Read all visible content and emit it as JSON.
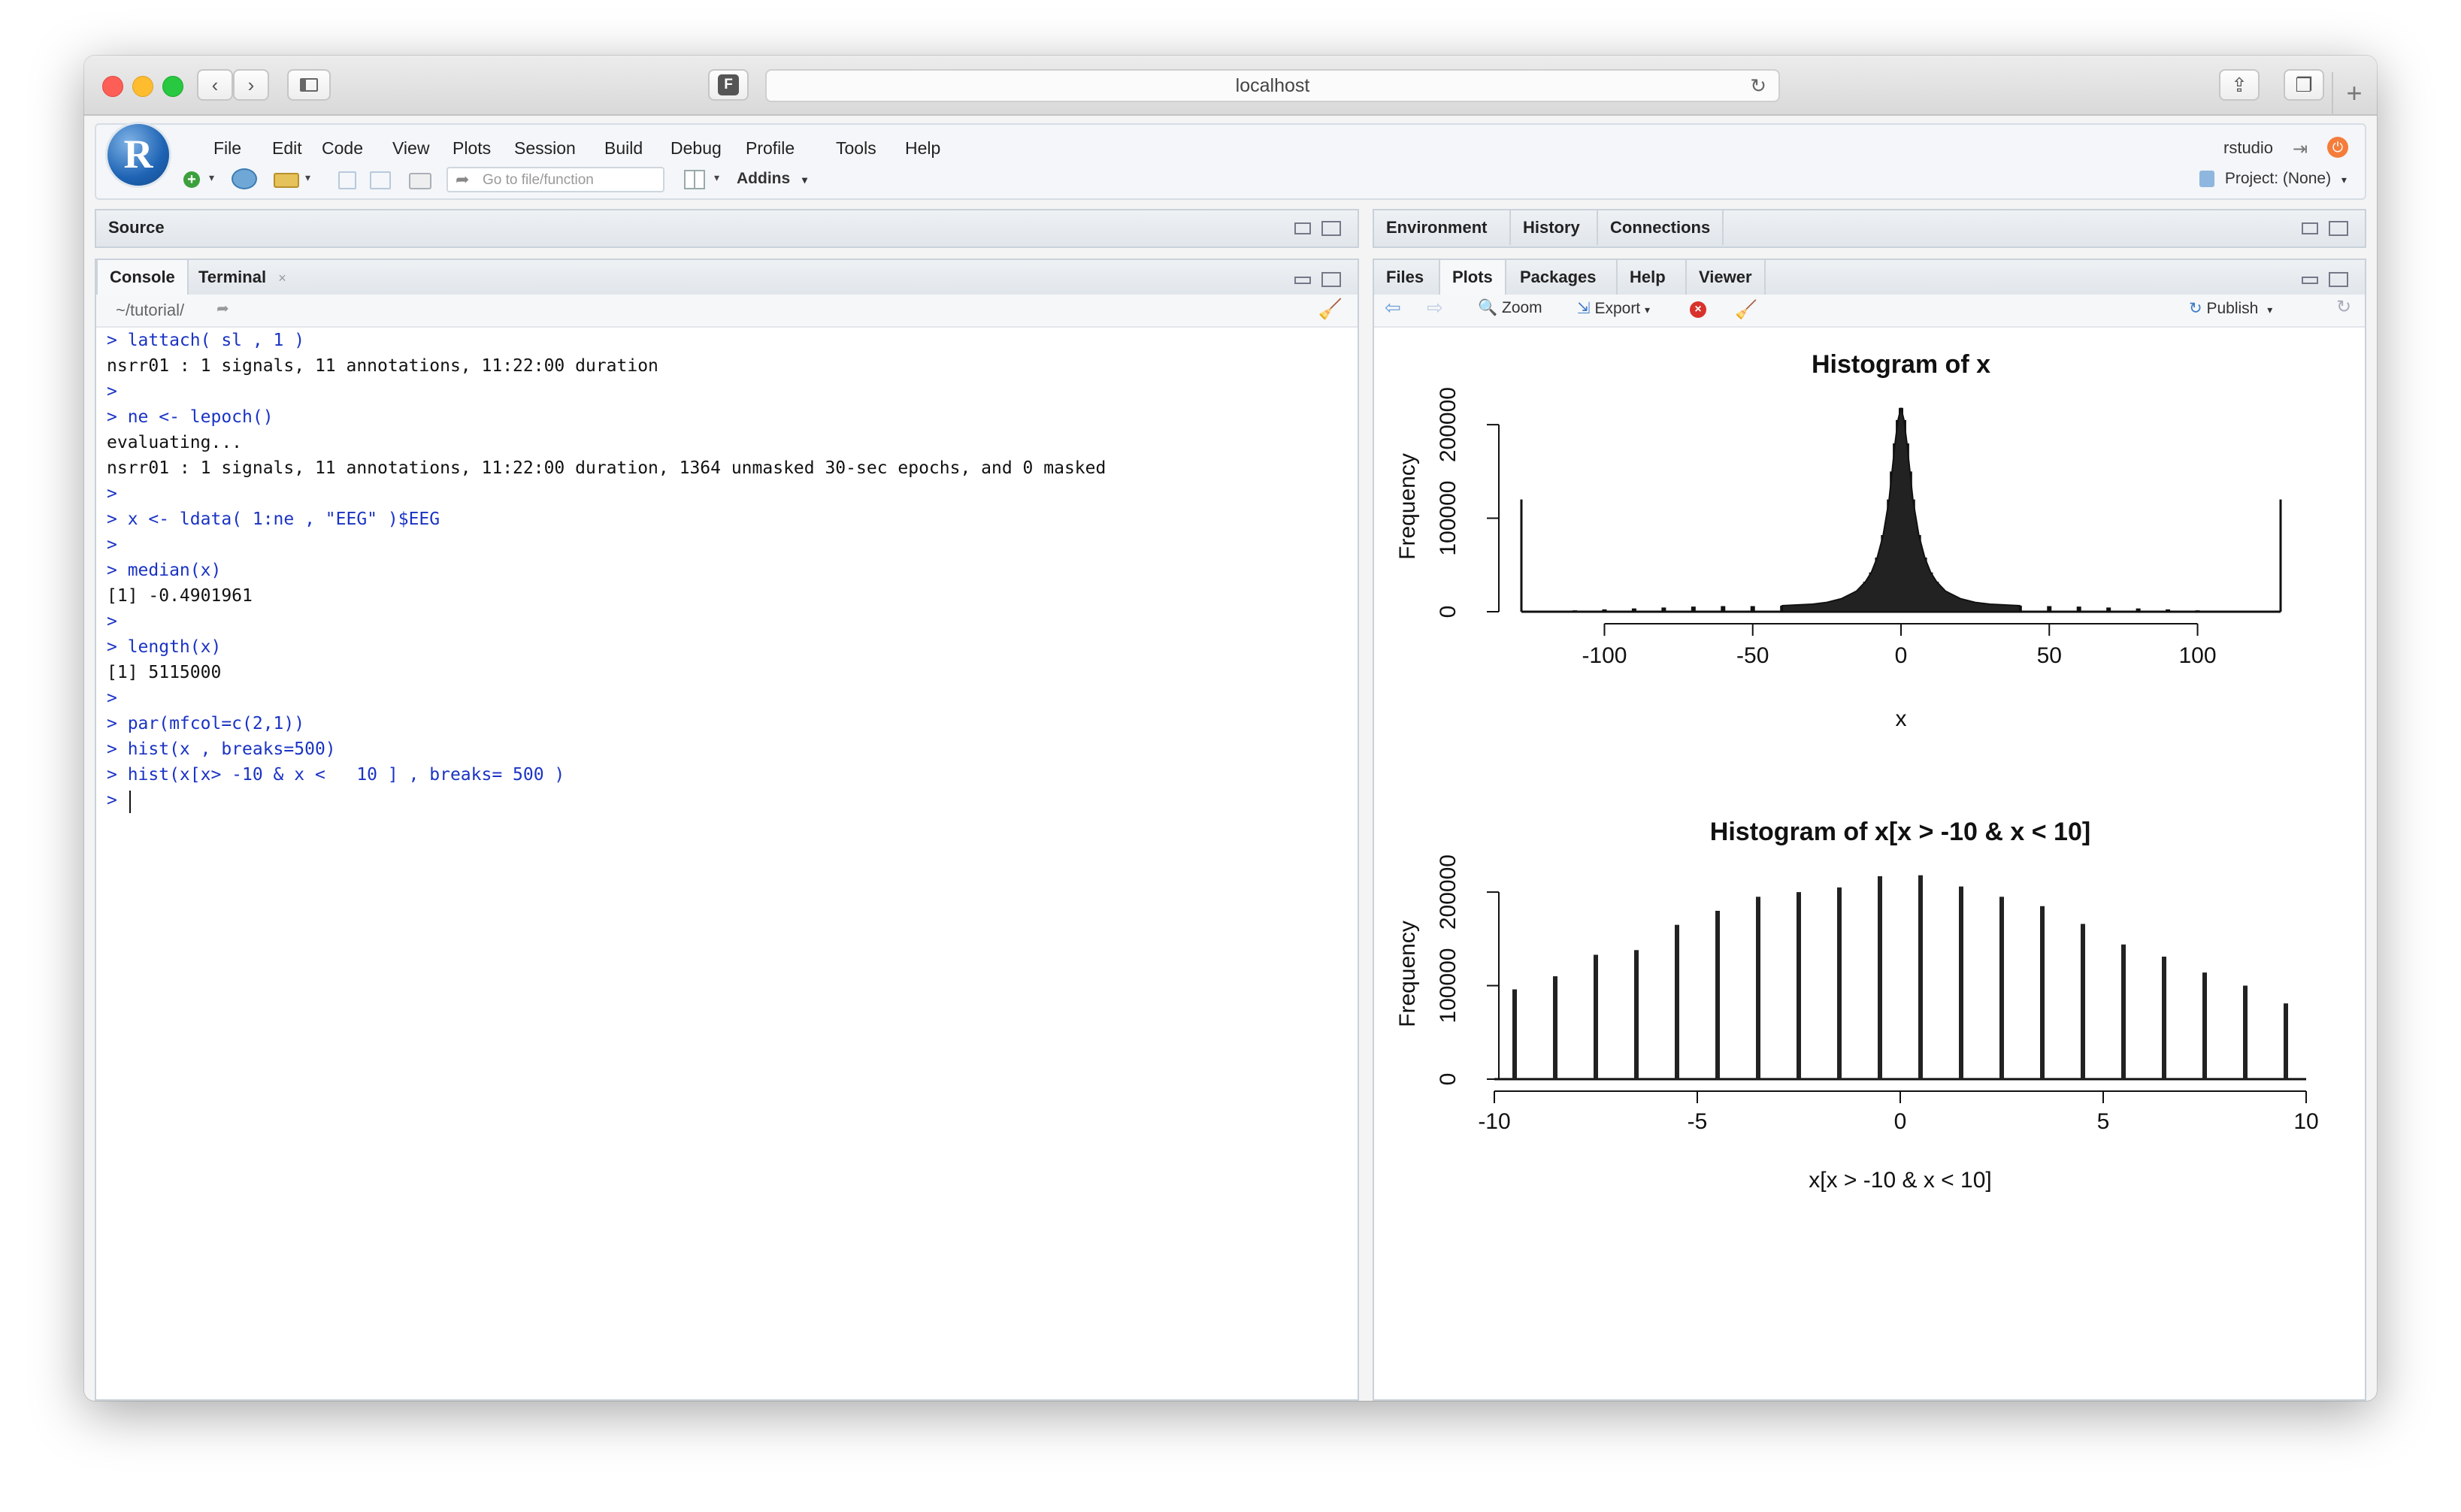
{
  "browser": {
    "url": "localhost",
    "favicon_letter": "F"
  },
  "rstudio": {
    "logo_letter": "R",
    "menu": [
      "File",
      "Edit",
      "Code",
      "View",
      "Plots",
      "Session",
      "Build",
      "Debug",
      "Profile",
      "Tools",
      "Help"
    ],
    "user": "rstudio",
    "toolbar": {
      "goto_placeholder": "Go to file/function",
      "addins": "Addins",
      "project": "Project: (None)"
    }
  },
  "source_pane": {
    "title": "Source"
  },
  "console_pane": {
    "tabs": [
      "Console",
      "Terminal"
    ],
    "path": "~/tutorial/",
    "lines": [
      {
        "type": "cmd",
        "text": "> lattach( sl , 1 )"
      },
      {
        "type": "out",
        "text": "nsrr01 : 1 signals, 11 annotations, 11:22:00 duration"
      },
      {
        "type": "cmd",
        "text": ">"
      },
      {
        "type": "cmd",
        "text": "> ne <- lepoch()"
      },
      {
        "type": "out",
        "text": "evaluating..."
      },
      {
        "type": "out",
        "text": "nsrr01 : 1 signals, 11 annotations, 11:22:00 duration, 1364 unmasked 30-sec epochs, and 0 masked"
      },
      {
        "type": "cmd",
        "text": ">"
      },
      {
        "type": "cmd",
        "text": "> x <- ldata( 1:ne , \"EEG\" )$EEG"
      },
      {
        "type": "cmd",
        "text": ">"
      },
      {
        "type": "cmd",
        "text": "> median(x)"
      },
      {
        "type": "out",
        "text": "[1] -0.4901961"
      },
      {
        "type": "cmd",
        "text": ">"
      },
      {
        "type": "cmd",
        "text": "> length(x)"
      },
      {
        "type": "out",
        "text": "[1] 5115000"
      },
      {
        "type": "cmd",
        "text": ">"
      },
      {
        "type": "cmd",
        "text": "> par(mfcol=c(2,1))"
      },
      {
        "type": "cmd",
        "text": "> hist(x , breaks=500)"
      },
      {
        "type": "cmd",
        "text": "> hist(x[x> -10 & x <   10 ] , breaks= 500 )"
      },
      {
        "type": "cmd",
        "text": "> "
      }
    ]
  },
  "env_pane": {
    "tabs": [
      "Environment",
      "History",
      "Connections"
    ]
  },
  "files_pane": {
    "tabs": [
      "Files",
      "Plots",
      "Packages",
      "Help",
      "Viewer"
    ],
    "toolbar": {
      "zoom": "Zoom",
      "export": "Export",
      "publish": "Publish"
    }
  },
  "chart_data": [
    {
      "type": "bar",
      "title": "Histogram of x",
      "xlabel": "x",
      "ylabel": "Frequency",
      "xlim": [
        -128,
        128
      ],
      "ylim": [
        0,
        225000
      ],
      "xticks": [
        -100,
        -50,
        0,
        50,
        100
      ],
      "yticks": [
        0,
        100000,
        200000
      ],
      "x": [
        -128,
        -120,
        -110,
        -100,
        -90,
        -80,
        -70,
        -60,
        -50,
        -40,
        -30,
        -25,
        -20,
        -15,
        -12,
        -10,
        -8,
        -6,
        -4,
        -3,
        -2,
        -1,
        0,
        1,
        2,
        3,
        4,
        6,
        8,
        10,
        12,
        15,
        20,
        25,
        30,
        40,
        50,
        60,
        70,
        80,
        90,
        100,
        110,
        120,
        128
      ],
      "values": [
        120000,
        500,
        1500,
        2500,
        3500,
        4500,
        5500,
        6000,
        6000,
        6500,
        8000,
        10000,
        14000,
        22000,
        32000,
        42000,
        58000,
        82000,
        120000,
        150000,
        180000,
        205000,
        218000,
        205000,
        180000,
        150000,
        120000,
        82000,
        58000,
        42000,
        32000,
        22000,
        14000,
        10000,
        8000,
        6500,
        6000,
        5500,
        4500,
        3500,
        2500,
        1500,
        800,
        500,
        120000
      ]
    },
    {
      "type": "bar",
      "title": "Histogram of x[x > -10 & x < 10]",
      "xlabel": "x[x > -10 & x < 10]",
      "ylabel": "Frequency",
      "xlim": [
        -10,
        10
      ],
      "ylim": [
        0,
        225000
      ],
      "xticks": [
        -10,
        -5,
        0,
        5,
        10
      ],
      "yticks": [
        0,
        100000,
        200000
      ],
      "x": [
        -9.5,
        -8.5,
        -7.5,
        -6.5,
        -5.5,
        -4.5,
        -3.5,
        -2.5,
        -1.5,
        -0.5,
        0.5,
        1.5,
        2.5,
        3.5,
        4.5,
        5.5,
        6.5,
        7.5,
        8.5,
        9.5
      ],
      "values": [
        96000,
        110000,
        133000,
        138000,
        165000,
        180000,
        195000,
        200000,
        205000,
        217000,
        218000,
        206000,
        195000,
        185000,
        166000,
        144000,
        131000,
        114000,
        100000,
        81000
      ]
    }
  ]
}
